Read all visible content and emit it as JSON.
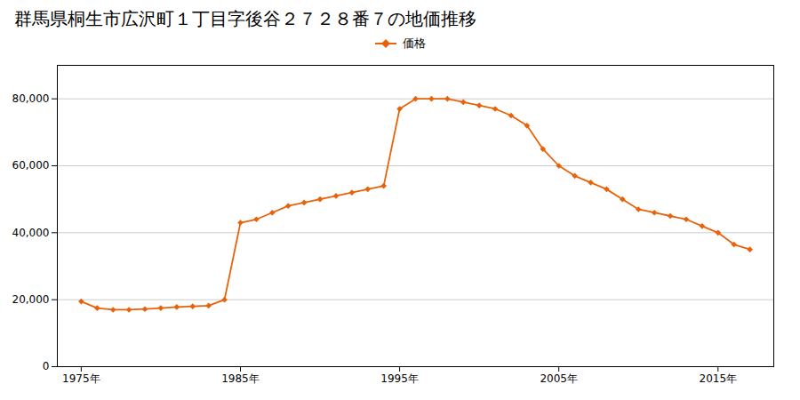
{
  "chart_data": {
    "type": "line",
    "title": "群馬県桐生市広沢町１丁目字後谷２７２８番７の地価推移",
    "x": [
      1975,
      1976,
      1977,
      1978,
      1979,
      1980,
      1981,
      1982,
      1983,
      1984,
      1985,
      1986,
      1987,
      1988,
      1989,
      1990,
      1991,
      1992,
      1993,
      1994,
      1995,
      1996,
      1997,
      1998,
      1999,
      2000,
      2001,
      2002,
      2003,
      2004,
      2005,
      2006,
      2007,
      2008,
      2009,
      2010,
      2011,
      2012,
      2013,
      2014,
      2015,
      2016,
      2017
    ],
    "series": [
      {
        "name": "価格",
        "color": "#E8620A",
        "marker": "diamond",
        "values": [
          19500,
          17500,
          17000,
          17000,
          17200,
          17500,
          17800,
          18000,
          18200,
          20000,
          43000,
          44000,
          46000,
          48000,
          49000,
          50000,
          51000,
          52000,
          53000,
          54000,
          77000,
          80000,
          80000,
          80000,
          79000,
          78000,
          77000,
          75000,
          72000,
          65000,
          60000,
          57000,
          55000,
          53000,
          50000,
          47000,
          46000,
          45000,
          44000,
          42000,
          40000,
          36500,
          35000
        ]
      }
    ],
    "xlim": [
      1973.5,
      2018.5
    ],
    "xticks": [
      {
        "value": 1975,
        "label": "1975年"
      },
      {
        "value": 1985,
        "label": "1985年"
      },
      {
        "value": 1995,
        "label": "1995年"
      },
      {
        "value": 2005,
        "label": "2005年"
      },
      {
        "value": 2015,
        "label": "2015年"
      }
    ],
    "ylim": [
      0,
      90000
    ],
    "yticks": [
      0,
      {
        "value": 20000,
        "label": "20,000"
      },
      {
        "value": 40000,
        "label": "40,000"
      },
      {
        "value": 60000,
        "label": "60,000"
      },
      {
        "value": 80000,
        "label": "80,000"
      }
    ],
    "grid": "y",
    "legend": "top"
  }
}
